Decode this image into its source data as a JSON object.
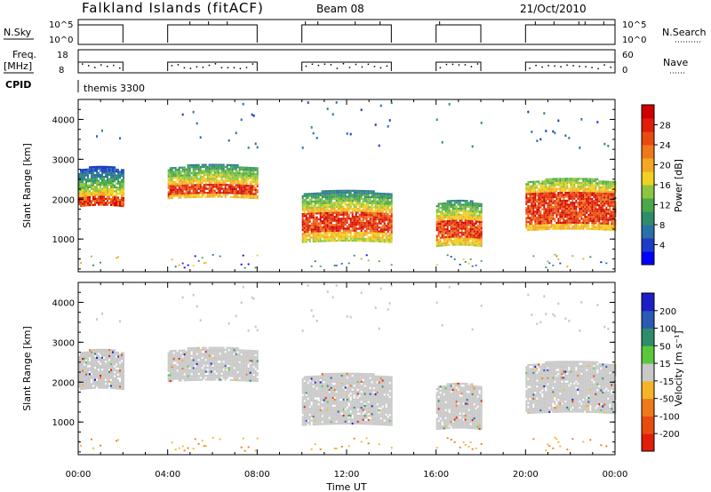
{
  "header": {
    "title": "Falkland Islands (fitACF)",
    "beam": "Beam 08",
    "date": "21/Oct/2010"
  },
  "top_panels": {
    "nsky_label": "N.Sky",
    "nsky_ticks": [
      "10^5",
      "10^0"
    ],
    "nsearch_label": "N.Search",
    "freq_label_1": "Freq.",
    "freq_label_2": "[MHz]",
    "freq_ticks": [
      "18",
      "8"
    ],
    "nave_label": "Nave",
    "nave_ticks": [
      "60",
      "0"
    ],
    "cpid_label": "CPID",
    "cpid_value": "themis 3300"
  },
  "chart_data": [
    {
      "type": "heatmap",
      "name": "power-panel",
      "xlabel": "",
      "ylabel": "Slant Range [km]",
      "xlim": [
        0,
        24
      ],
      "ylim": [
        180,
        4500
      ],
      "yticks": [
        1000,
        2000,
        3000,
        4000
      ],
      "colorbar": {
        "label": "Power [dB]",
        "ticks": [
          "4",
          "8",
          "12",
          "16",
          "20",
          "24",
          "28"
        ],
        "colors": [
          "#0000ff",
          "#1e3cc8",
          "#2a6fa8",
          "#2f8c6a",
          "#4aa84a",
          "#8cc63f",
          "#f0d020",
          "#f5a623",
          "#f07818",
          "#e84a10",
          "#e01e0a",
          "#d00000"
        ]
      },
      "regions": [
        {
          "t0": 0.0,
          "t1": 2.0,
          "core_low": 1800,
          "core_high": 2700,
          "peak_low": 1750,
          "peak_high": 2000
        },
        {
          "t0": 4.0,
          "t1": 8.0,
          "core_low": 2000,
          "core_high": 2750,
          "peak_low": 2050,
          "peak_high": 2300
        },
        {
          "t0": 10.0,
          "t1": 14.0,
          "core_low": 900,
          "core_high": 2100,
          "peak_low": 1100,
          "peak_high": 1600
        },
        {
          "t0": 16.0,
          "t1": 18.0,
          "core_low": 800,
          "core_high": 1850,
          "peak_low": 950,
          "peak_high": 1400
        },
        {
          "t0": 20.0,
          "t1": 24.0,
          "core_low": 1200,
          "core_high": 2400,
          "peak_low": 1300,
          "peak_high": 2100
        }
      ]
    },
    {
      "type": "heatmap",
      "name": "velocity-panel",
      "xlabel": "Time UT",
      "ylabel": "Slant Range [km]",
      "xlim": [
        0,
        24
      ],
      "ylim": [
        180,
        4500
      ],
      "yticks": [
        1000,
        2000,
        3000,
        4000
      ],
      "xtick_labels": [
        "00:00",
        "04:00",
        "08:00",
        "12:00",
        "16:00",
        "20:00",
        "00:00"
      ],
      "xtick_hours": [
        0,
        4,
        8,
        12,
        16,
        20,
        24
      ],
      "colorbar": {
        "label": "Velocity [m s⁻¹]",
        "ticks": [
          "200",
          "100",
          "50",
          "15",
          "-15",
          "-50",
          "-100",
          "-200"
        ],
        "colors": [
          "#1e1ec8",
          "#2a5ab4",
          "#2f8c6a",
          "#5ac83c",
          "#c8c8c8",
          "#f5b428",
          "#f07818",
          "#e84a10",
          "#e01e0a"
        ]
      }
    }
  ]
}
